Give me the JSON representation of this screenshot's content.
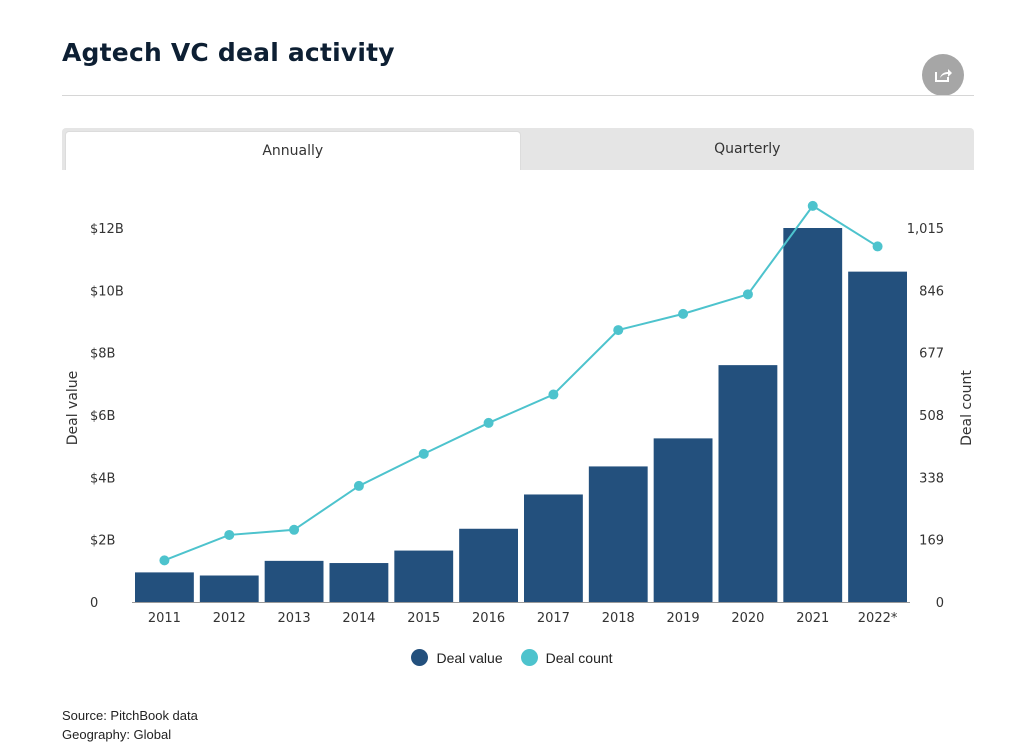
{
  "header": {
    "title": "Agtech VC deal activity"
  },
  "share": {
    "icon": "share-icon"
  },
  "tabs": [
    {
      "label": "Annually",
      "active": true
    },
    {
      "label": "Quarterly",
      "active": false
    }
  ],
  "colors": {
    "deal_value": "#23507d",
    "deal_count": "#4dc3cd"
  },
  "chart_data": {
    "type": "bar",
    "categories": [
      "2011",
      "2012",
      "2013",
      "2014",
      "2015",
      "2016",
      "2017",
      "2018",
      "2019",
      "2020",
      "2021",
      "2022*"
    ],
    "series": [
      {
        "name": "Deal value",
        "type": "bar",
        "axis": "left",
        "values": [
          0.95,
          0.85,
          1.32,
          1.25,
          1.65,
          2.35,
          3.45,
          4.35,
          5.25,
          7.6,
          12.0,
          10.6
        ]
      },
      {
        "name": "Deal count",
        "type": "line",
        "axis": "right",
        "values": [
          113,
          182,
          196,
          315,
          402,
          486,
          563,
          738,
          782,
          835,
          1075,
          965
        ]
      }
    ],
    "y_left": {
      "label": "Deal value",
      "ticks": [
        0,
        2,
        4,
        6,
        8,
        10,
        12
      ],
      "tick_labels": [
        "0",
        "$2B",
        "$4B",
        "$6B",
        "$8B",
        "$10B",
        "$12B"
      ],
      "ylim": [
        0,
        12
      ]
    },
    "y_right": {
      "label": "Deal count",
      "ticks": [
        0,
        169,
        338,
        508,
        677,
        846,
        1015
      ],
      "tick_labels": [
        "0",
        "169",
        "338",
        "508",
        "677",
        "846",
        "1,015"
      ],
      "ylim": [
        0,
        1015
      ]
    },
    "grid": false,
    "legend_position": "bottom-center"
  },
  "legend": [
    {
      "label": "Deal value"
    },
    {
      "label": "Deal count"
    }
  ],
  "footer": {
    "source": "Source: PitchBook data",
    "geography": "Geography: Global"
  }
}
